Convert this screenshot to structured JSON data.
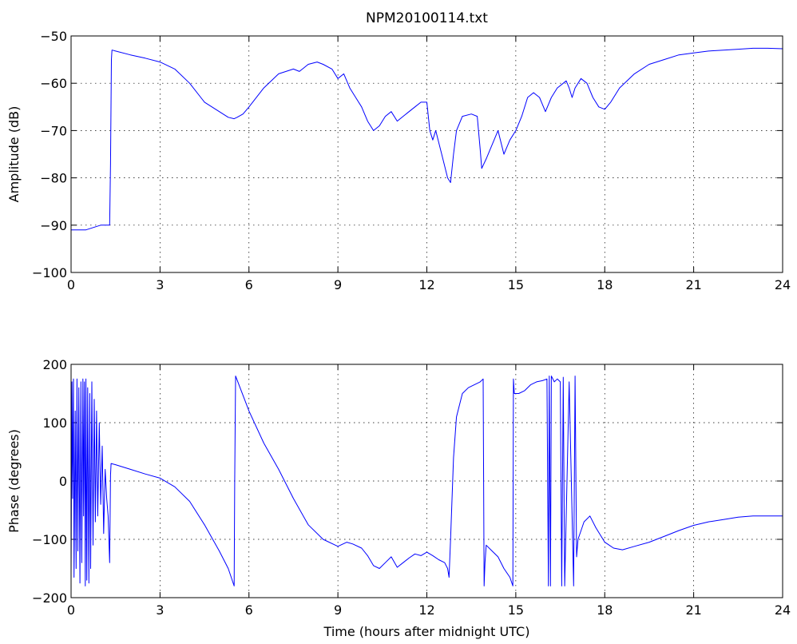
{
  "chart_data": [
    {
      "type": "line",
      "title": "NPM20100114.txt",
      "xlabel": "",
      "ylabel": "Amplitude (dB)",
      "xlim": [
        0,
        24
      ],
      "ylim": [
        -100,
        -50
      ],
      "xticks": [
        0,
        3,
        6,
        9,
        12,
        15,
        18,
        21,
        24
      ],
      "yticks": [
        -50,
        -60,
        -70,
        -80,
        -90,
        -100
      ],
      "grid": true,
      "series": [
        {
          "color": "#0000ff",
          "x": [
            0,
            0.5,
            1.0,
            1.3,
            1.33,
            1.36,
            1.38,
            1.4,
            1.5,
            2.0,
            2.5,
            3.0,
            3.5,
            4.0,
            4.5,
            5.0,
            5.3,
            5.5,
            5.6,
            5.8,
            6.0,
            6.5,
            7.0,
            7.5,
            7.7,
            8.0,
            8.3,
            8.5,
            8.8,
            9.0,
            9.2,
            9.4,
            9.6,
            9.8,
            10.0,
            10.2,
            10.4,
            10.6,
            10.8,
            11.0,
            11.2,
            11.4,
            11.6,
            11.8,
            12.0,
            12.1,
            12.2,
            12.3,
            12.5,
            12.7,
            12.8,
            12.9,
            13.0,
            13.2,
            13.5,
            13.7,
            13.8,
            13.85,
            14.0,
            14.2,
            14.4,
            14.6,
            14.8,
            15.0,
            15.2,
            15.4,
            15.6,
            15.8,
            16.0,
            16.2,
            16.4,
            16.6,
            16.7,
            16.8,
            16.9,
            17.0,
            17.2,
            17.4,
            17.6,
            17.8,
            18.0,
            18.2,
            18.5,
            19.0,
            19.5,
            20.0,
            20.5,
            21.0,
            21.5,
            22.0,
            22.5,
            23.0,
            23.5,
            24.0
          ],
          "y": [
            -91,
            -91,
            -90,
            -90,
            -77,
            -55,
            -53,
            -53,
            -53.2,
            -54,
            -54.7,
            -55.5,
            -57,
            -60,
            -64,
            -66,
            -67.2,
            -67.5,
            -67.2,
            -66.5,
            -65,
            -61,
            -58,
            -57,
            -57.5,
            -56,
            -55.5,
            -56,
            -57,
            -59,
            -58,
            -61,
            -63,
            -65,
            -68,
            -70,
            -69,
            -67,
            -66,
            -68,
            -67,
            -66,
            -65,
            -64,
            -64,
            -70,
            -72,
            -70,
            -75,
            -80,
            -81,
            -75,
            -70,
            -67,
            -66.5,
            -67,
            -74,
            -78,
            -76,
            -73,
            -70,
            -75,
            -72,
            -70,
            -67,
            -63,
            -62,
            -63,
            -66,
            -63,
            -61,
            -60,
            -59.5,
            -61,
            -63,
            -61,
            -59,
            -60,
            -63,
            -65,
            -65.5,
            -64,
            -61,
            -58,
            -56,
            -55,
            -54,
            -53.6,
            -53.2,
            -53,
            -52.8,
            -52.6,
            -52.6,
            -52.7
          ]
        }
      ]
    },
    {
      "type": "line",
      "title": "",
      "xlabel": "Time (hours after midnight UTC)",
      "ylabel": "Phase (degrees)",
      "xlim": [
        0,
        24
      ],
      "ylim": [
        -200,
        200
      ],
      "xticks": [
        0,
        3,
        6,
        9,
        12,
        15,
        18,
        21,
        24
      ],
      "yticks": [
        200,
        100,
        0,
        -100,
        -200
      ],
      "grid": true,
      "series": [
        {
          "color": "#0000ff",
          "x": [
            0,
            0.03,
            0.05,
            0.08,
            0.1,
            0.14,
            0.17,
            0.2,
            0.23,
            0.26,
            0.3,
            0.33,
            0.36,
            0.4,
            0.42,
            0.45,
            0.48,
            0.5,
            0.53,
            0.56,
            0.6,
            0.63,
            0.66,
            0.7,
            0.74,
            0.78,
            0.82,
            0.86,
            0.9,
            0.95,
            1.0,
            1.05,
            1.1,
            1.15,
            1.2,
            1.25,
            1.3,
            1.33,
            1.35,
            1.5,
            2.0,
            2.5,
            3.0,
            3.5,
            4.0,
            4.5,
            5.0,
            5.3,
            5.5,
            5.52,
            5.55,
            6.0,
            6.5,
            7.0,
            7.5,
            8.0,
            8.5,
            9.0,
            9.3,
            9.5,
            9.8,
            10.0,
            10.2,
            10.4,
            10.6,
            10.8,
            11.0,
            11.2,
            11.4,
            11.6,
            11.8,
            12.0,
            12.2,
            12.4,
            12.6,
            12.7,
            12.75,
            12.8,
            12.9,
            13.0,
            13.2,
            13.4,
            13.6,
            13.8,
            13.9,
            13.93,
            13.96,
            14.0,
            14.2,
            14.4,
            14.6,
            14.8,
            14.9,
            14.92,
            14.95,
            15.1,
            15.3,
            15.5,
            15.7,
            15.9,
            16.05,
            16.1,
            16.13,
            16.17,
            16.2,
            16.25,
            16.3,
            16.4,
            16.5,
            16.55,
            16.6,
            16.65,
            16.8,
            16.95,
            17.0,
            17.05,
            17.1,
            17.3,
            17.5,
            17.7,
            18.0,
            18.3,
            18.6,
            19.0,
            19.5,
            20.0,
            20.5,
            21.0,
            21.5,
            22.0,
            22.5,
            23.0,
            23.5,
            24.0
          ],
          "y": [
            -160,
            170,
            -30,
            175,
            -165,
            120,
            -150,
            175,
            -120,
            160,
            -175,
            170,
            -140,
            175,
            -60,
            170,
            -180,
            175,
            -170,
            160,
            -175,
            150,
            -150,
            170,
            -110,
            140,
            -70,
            120,
            -60,
            100,
            -40,
            60,
            -90,
            20,
            -30,
            -60,
            -140,
            10,
            30,
            28,
            20,
            12,
            5,
            -10,
            -35,
            -75,
            -120,
            -150,
            -180,
            0,
            180,
            120,
            65,
            20,
            -30,
            -75,
            -100,
            -112,
            -105,
            -108,
            -115,
            -128,
            -145,
            -150,
            -140,
            -130,
            -148,
            -140,
            -132,
            -125,
            -128,
            -122,
            -128,
            -135,
            -140,
            -150,
            -165,
            -100,
            40,
            110,
            150,
            160,
            165,
            170,
            175,
            -180,
            -140,
            -110,
            -120,
            -130,
            -150,
            -165,
            -180,
            175,
            150,
            150,
            155,
            165,
            170,
            172,
            175,
            -180,
            180,
            -180,
            180,
            175,
            170,
            175,
            170,
            -180,
            178,
            -180,
            170,
            -180,
            180,
            -130,
            -100,
            -70,
            -60,
            -80,
            -105,
            -115,
            -118,
            -112,
            -105,
            -95,
            -85,
            -76,
            -70,
            -66,
            -62,
            -60,
            -60,
            -60
          ]
        }
      ]
    }
  ]
}
